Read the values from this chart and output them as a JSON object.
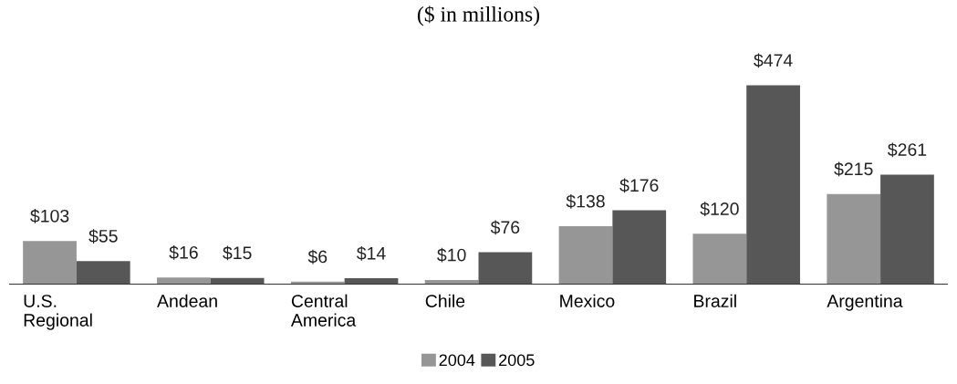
{
  "chart_data": {
    "type": "bar",
    "title": "($ in millions)",
    "categories": [
      "U.S.\nRegional",
      "Andean",
      "Central\nAmerica",
      "Chile",
      "Mexico",
      "Brazil",
      "Argentina"
    ],
    "series": [
      {
        "name": "2004",
        "color": "#969696",
        "values": [
          103,
          16,
          6,
          10,
          138,
          120,
          215
        ],
        "value_labels": [
          "$103",
          "$16",
          "$6",
          "$10",
          "$138",
          "$120",
          "$215"
        ]
      },
      {
        "name": "2005",
        "color": "#575757",
        "values": [
          55,
          15,
          14,
          76,
          176,
          474,
          261
        ],
        "value_labels": [
          "$55",
          "$15",
          "$14",
          "$76",
          "$176",
          "$474",
          "$261"
        ]
      }
    ],
    "legend": "bottom",
    "grid": false
  }
}
